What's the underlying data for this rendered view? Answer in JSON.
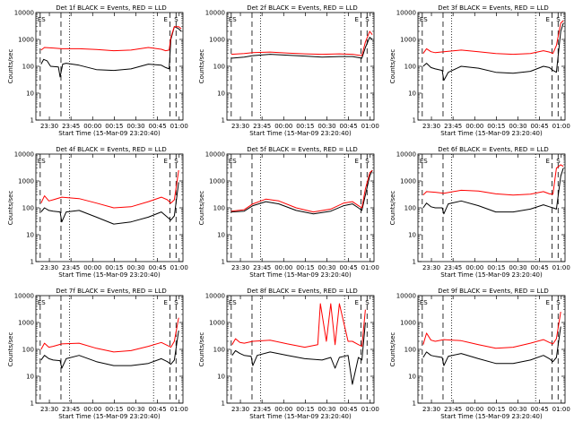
{
  "shared": {
    "x_label": "Start Time (15-Mar-09 23:20:40)",
    "y_label": "Counts/sec",
    "x_ticks": [
      "23:30",
      "23:45",
      "00:00",
      "00:15",
      "00:30",
      "00:45",
      "01:00"
    ],
    "x_tick_hours": [
      0.156,
      0.406,
      0.656,
      0.906,
      1.156,
      1.406,
      1.656
    ],
    "y_ticks": [
      "1",
      "10",
      "100",
      "1000",
      "10000"
    ],
    "y_tick_values": [
      1,
      10,
      100,
      1000,
      10000
    ],
    "x_range_hours": [
      0,
      1.7
    ],
    "y_range": [
      1,
      10000
    ],
    "y_scale": "log",
    "colors": {
      "events": "#000000",
      "lld": "#ff0000",
      "background": "#ffffff"
    },
    "markers": {
      "left": "ES",
      "right": "S",
      "right_secondary": "E"
    }
  },
  "chart_data": [
    {
      "type": "line",
      "title": "Det 1f BLACK = Events, RED = LLD",
      "dashed_x": [
        0.05,
        0.29,
        1.55,
        1.62
      ],
      "dotted_x": [
        0.39,
        1.36
      ],
      "series": [
        {
          "name": "Events",
          "x": [
            0.06,
            0.09,
            0.13,
            0.17,
            0.26,
            0.28,
            0.31,
            0.35,
            0.5,
            0.7,
            0.9,
            1.1,
            1.3,
            1.45,
            1.5,
            1.54,
            1.56,
            1.6,
            1.65,
            1.68
          ],
          "y": [
            120,
            180,
            160,
            100,
            95,
            40,
            120,
            130,
            110,
            75,
            70,
            80,
            120,
            110,
            90,
            80,
            1000,
            3000,
            2500,
            2000
          ]
        },
        {
          "name": "LLD",
          "x": [
            0.06,
            0.1,
            0.2,
            0.3,
            0.5,
            0.7,
            0.9,
            1.1,
            1.3,
            1.45,
            1.5,
            1.54,
            1.56,
            1.6,
            1.65,
            1.68
          ],
          "y": [
            400,
            500,
            480,
            450,
            450,
            420,
            380,
            400,
            500,
            430,
            380,
            400,
            1200,
            3000,
            3000,
            2500
          ]
        }
      ]
    },
    {
      "type": "line",
      "title": "Det 2f BLACK = Events, RED = LLD",
      "dashed_x": [
        0.05,
        0.29,
        1.55,
        1.62
      ],
      "dotted_x": [
        0.39,
        1.36
      ],
      "series": [
        {
          "name": "Events",
          "x": [
            0.05,
            0.2,
            0.3,
            0.5,
            0.7,
            0.9,
            1.1,
            1.3,
            1.45,
            1.52,
            1.56,
            1.6,
            1.65,
            1.68
          ],
          "y": [
            200,
            220,
            250,
            280,
            260,
            240,
            220,
            230,
            230,
            210,
            200,
            500,
            1200,
            1000
          ]
        },
        {
          "name": "LLD",
          "x": [
            0.05,
            0.2,
            0.3,
            0.5,
            0.7,
            0.9,
            1.1,
            1.3,
            1.45,
            1.52,
            1.56,
            1.6,
            1.65,
            1.68
          ],
          "y": [
            280,
            300,
            320,
            340,
            310,
            290,
            280,
            290,
            280,
            260,
            250,
            800,
            2000,
            1500
          ]
        }
      ]
    },
    {
      "type": "line",
      "title": "Det 3f BLACK = Events, RED = LLD",
      "dashed_x": [
        0.05,
        0.29,
        1.55,
        1.62
      ],
      "dotted_x": [
        0.39,
        1.36
      ],
      "series": [
        {
          "name": "Events",
          "x": [
            0.06,
            0.1,
            0.15,
            0.2,
            0.28,
            0.3,
            0.35,
            0.5,
            0.7,
            0.9,
            1.1,
            1.3,
            1.45,
            1.52,
            1.56,
            1.6,
            1.65,
            1.68
          ],
          "y": [
            100,
            130,
            90,
            80,
            70,
            30,
            60,
            100,
            85,
            60,
            55,
            65,
            100,
            90,
            70,
            60,
            2000,
            4000
          ]
        },
        {
          "name": "LLD",
          "x": [
            0.06,
            0.1,
            0.15,
            0.2,
            0.3,
            0.5,
            0.7,
            0.9,
            1.1,
            1.3,
            1.45,
            1.52,
            1.56,
            1.6,
            1.65,
            1.68
          ],
          "y": [
            300,
            450,
            350,
            320,
            350,
            400,
            350,
            300,
            280,
            300,
            380,
            340,
            300,
            600,
            4000,
            5000
          ]
        }
      ]
    },
    {
      "type": "line",
      "title": "Det 4f BLACK = Events, RED = LLD",
      "dashed_x": [
        0.05,
        0.29,
        1.55,
        1.62
      ],
      "dotted_x": [
        0.39,
        1.36
      ],
      "series": [
        {
          "name": "Events",
          "x": [
            0.06,
            0.1,
            0.15,
            0.2,
            0.28,
            0.3,
            0.35,
            0.5,
            0.7,
            0.9,
            1.1,
            1.3,
            1.45,
            1.52,
            1.56,
            1.6,
            1.65
          ],
          "y": [
            70,
            100,
            80,
            75,
            70,
            30,
            70,
            80,
            45,
            25,
            30,
            45,
            70,
            45,
            35,
            50,
            900
          ]
        },
        {
          "name": "LLD",
          "x": [
            0.06,
            0.1,
            0.15,
            0.2,
            0.3,
            0.5,
            0.7,
            0.9,
            1.1,
            1.3,
            1.45,
            1.52,
            1.56,
            1.6,
            1.65
          ],
          "y": [
            150,
            280,
            180,
            200,
            250,
            220,
            150,
            100,
            110,
            170,
            250,
            200,
            150,
            200,
            2500
          ]
        }
      ]
    },
    {
      "type": "line",
      "title": "Det 5f BLACK = Events, RED = LLD",
      "dashed_x": [
        0.05,
        0.29,
        1.55,
        1.62
      ],
      "dotted_x": [
        0.39,
        1.36
      ],
      "series": [
        {
          "name": "Events",
          "x": [
            0.05,
            0.2,
            0.3,
            0.45,
            0.6,
            0.8,
            1.0,
            1.2,
            1.35,
            1.45,
            1.52,
            1.56,
            1.6,
            1.65,
            1.68
          ],
          "y": [
            70,
            75,
            120,
            170,
            140,
            80,
            60,
            75,
            120,
            140,
            100,
            80,
            300,
            1500,
            2500
          ]
        },
        {
          "name": "LLD",
          "x": [
            0.05,
            0.2,
            0.3,
            0.45,
            0.6,
            0.8,
            1.0,
            1.2,
            1.35,
            1.45,
            1.52,
            1.56,
            1.6,
            1.65,
            1.68
          ],
          "y": [
            75,
            85,
            140,
            210,
            180,
            100,
            70,
            90,
            150,
            170,
            120,
            100,
            500,
            2000,
            2500
          ]
        }
      ]
    },
    {
      "type": "line",
      "title": "Det 6f BLACK = Events, RED = LLD",
      "dashed_x": [
        0.05,
        0.29,
        1.55,
        1.62
      ],
      "dotted_x": [
        0.39,
        1.36
      ],
      "series": [
        {
          "name": "Events",
          "x": [
            0.06,
            0.1,
            0.15,
            0.2,
            0.28,
            0.3,
            0.35,
            0.5,
            0.7,
            0.9,
            1.1,
            1.3,
            1.45,
            1.52,
            1.56,
            1.6,
            1.65,
            1.68
          ],
          "y": [
            100,
            150,
            110,
            100,
            100,
            60,
            140,
            180,
            120,
            70,
            70,
            90,
            130,
            110,
            100,
            90,
            1500,
            3000
          ]
        },
        {
          "name": "LLD",
          "x": [
            0.06,
            0.1,
            0.2,
            0.3,
            0.5,
            0.7,
            0.9,
            1.1,
            1.3,
            1.45,
            1.52,
            1.56,
            1.6,
            1.65,
            1.68
          ],
          "y": [
            300,
            400,
            380,
            350,
            450,
            420,
            330,
            300,
            320,
            400,
            330,
            320,
            3000,
            4000,
            3500
          ]
        }
      ]
    },
    {
      "type": "line",
      "title": "Det 7f BLACK = Events, RED = LLD",
      "dashed_x": [
        0.05,
        0.29,
        1.55,
        1.62
      ],
      "dotted_x": [
        0.39,
        1.36
      ],
      "series": [
        {
          "name": "Events",
          "x": [
            0.06,
            0.1,
            0.15,
            0.2,
            0.28,
            0.3,
            0.35,
            0.5,
            0.7,
            0.9,
            1.1,
            1.3,
            1.45,
            1.52,
            1.56,
            1.6,
            1.65
          ],
          "y": [
            40,
            60,
            45,
            40,
            38,
            20,
            45,
            60,
            35,
            25,
            25,
            30,
            45,
            35,
            28,
            40,
            500
          ]
        },
        {
          "name": "LLD",
          "x": [
            0.06,
            0.1,
            0.15,
            0.2,
            0.3,
            0.5,
            0.7,
            0.9,
            1.1,
            1.3,
            1.45,
            1.52,
            1.56,
            1.6,
            1.65
          ],
          "y": [
            100,
            170,
            120,
            130,
            160,
            170,
            110,
            80,
            90,
            130,
            180,
            140,
            120,
            200,
            1500
          ]
        }
      ]
    },
    {
      "type": "line",
      "title": "Det 8f BLACK = Events, RED = LLD",
      "dashed_x": [
        0.05,
        0.29,
        1.55,
        1.62
      ],
      "dotted_x": [
        0.39,
        1.36
      ],
      "series": [
        {
          "name": "Events",
          "x": [
            0.06,
            0.1,
            0.15,
            0.2,
            0.28,
            0.3,
            0.35,
            0.5,
            0.7,
            0.9,
            1.1,
            1.2,
            1.25,
            1.3,
            1.4,
            1.45,
            1.52,
            1.56,
            1.6
          ],
          "y": [
            60,
            90,
            70,
            60,
            55,
            25,
            60,
            80,
            60,
            45,
            40,
            50,
            20,
            50,
            60,
            5,
            50,
            40,
            1000
          ]
        },
        {
          "name": "LLD",
          "x": [
            0.06,
            0.1,
            0.15,
            0.2,
            0.3,
            0.5,
            0.7,
            0.9,
            1.05,
            1.08,
            1.15,
            1.2,
            1.25,
            1.3,
            1.4,
            1.45,
            1.52,
            1.56,
            1.6
          ],
          "y": [
            150,
            250,
            180,
            170,
            200,
            220,
            160,
            120,
            150,
            5000,
            200,
            5000,
            150,
            5000,
            200,
            200,
            150,
            130,
            3000
          ]
        }
      ]
    },
    {
      "type": "line",
      "title": "Det 9f BLACK = Events, RED = LLD",
      "dashed_x": [
        0.05,
        0.29,
        1.55,
        1.62
      ],
      "dotted_x": [
        0.39,
        1.36
      ],
      "series": [
        {
          "name": "Events",
          "x": [
            0.06,
            0.1,
            0.15,
            0.2,
            0.28,
            0.3,
            0.35,
            0.5,
            0.7,
            0.9,
            1.1,
            1.3,
            1.45,
            1.52,
            1.56,
            1.6,
            1.65
          ],
          "y": [
            50,
            80,
            60,
            55,
            50,
            25,
            55,
            70,
            45,
            30,
            30,
            40,
            60,
            45,
            35,
            50,
            700
          ]
        },
        {
          "name": "LLD",
          "x": [
            0.06,
            0.1,
            0.15,
            0.2,
            0.3,
            0.5,
            0.7,
            0.9,
            1.1,
            1.3,
            1.45,
            1.52,
            1.56,
            1.6,
            1.65
          ],
          "y": [
            150,
            400,
            220,
            200,
            230,
            210,
            150,
            110,
            120,
            170,
            230,
            180,
            160,
            250,
            2500
          ]
        }
      ]
    }
  ]
}
